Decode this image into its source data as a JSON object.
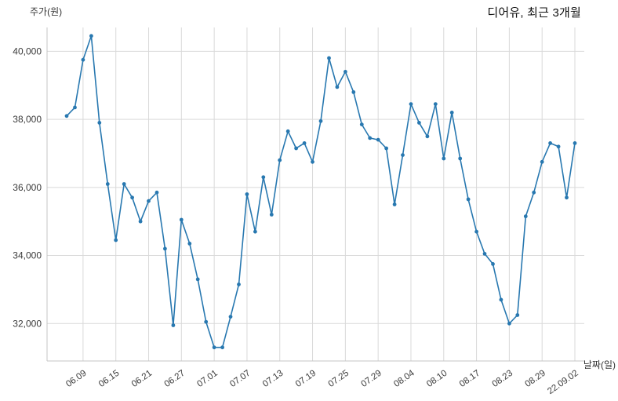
{
  "chart_data": {
    "type": "line",
    "title": "디어유, 최근 3개월",
    "ylabel": "주가(원)",
    "xlabel": "날짜(일)",
    "series_name": "주가",
    "line_color": "#2878b0",
    "grid_color": "#d9d9d9",
    "axis_color": "#c4c4c4",
    "tick_text_color": "#3a3a3a",
    "x": [
      "06.07",
      "06.08",
      "06.09",
      "06.10",
      "06.13",
      "06.14",
      "06.15",
      "06.16",
      "06.17",
      "06.20",
      "06.21",
      "06.22",
      "06.23",
      "06.24",
      "06.27",
      "06.28",
      "06.29",
      "06.30",
      "07.01",
      "07.04",
      "07.05",
      "07.06",
      "07.07",
      "07.08",
      "07.11",
      "07.12",
      "07.13",
      "07.14",
      "07.15",
      "07.18",
      "07.19",
      "07.20",
      "07.21",
      "07.22",
      "07.25",
      "07.26",
      "07.27",
      "07.28",
      "07.29",
      "08.01",
      "08.02",
      "08.03",
      "08.04",
      "08.05",
      "08.08",
      "08.09",
      "08.10",
      "08.11",
      "08.12",
      "08.16",
      "08.17",
      "08.18",
      "08.19",
      "08.22",
      "08.23",
      "08.24",
      "08.25",
      "08.26",
      "08.29",
      "08.30",
      "08.31",
      "09.01",
      "09.02"
    ],
    "values": [
      38100,
      38350,
      39750,
      40450,
      37900,
      36100,
      34450,
      36100,
      35700,
      35000,
      35600,
      35850,
      34200,
      31950,
      35050,
      34350,
      33300,
      32050,
      31300,
      31300,
      32200,
      33150,
      35800,
      34700,
      36300,
      35200,
      36800,
      37650,
      37150,
      37300,
      36750,
      37950,
      39800,
      38950,
      39400,
      38800,
      37850,
      37450,
      37400,
      37150,
      35500,
      36950,
      38450,
      37900,
      37500,
      38450,
      36850,
      38200,
      36850,
      35650,
      34700,
      34050,
      33750,
      32700,
      32000,
      32250,
      35150,
      35850,
      36750,
      37300,
      37200,
      35700,
      37300
    ],
    "x_ticks": [
      "06.09",
      "06.15",
      "06.21",
      "06.27",
      "07.01",
      "07.07",
      "07.13",
      "07.19",
      "07.25",
      "07.29",
      "08.04",
      "08.10",
      "08.17",
      "08.23",
      "08.29",
      "22.09.02"
    ],
    "x_tick_indices": [
      2,
      6,
      10,
      14,
      18,
      22,
      26,
      30,
      34,
      38,
      42,
      46,
      50,
      54,
      58,
      62
    ],
    "y_ticks": [
      32000,
      34000,
      36000,
      38000,
      40000
    ],
    "y_tick_labels": [
      "32,000",
      "34,000",
      "36,000",
      "38,000",
      "40,000"
    ],
    "ylim": [
      30900,
      40700
    ],
    "grid": true,
    "legend": "none"
  }
}
